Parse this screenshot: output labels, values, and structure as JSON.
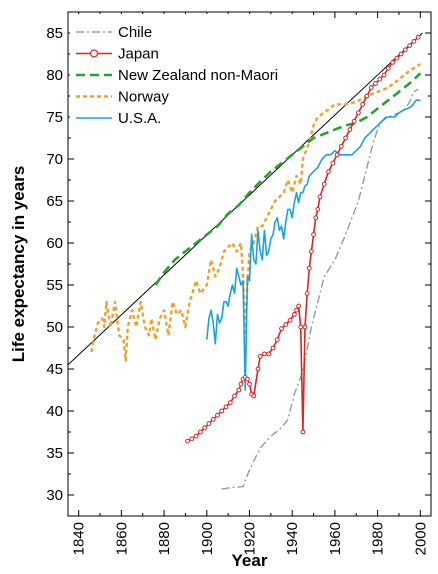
{
  "chart_data": {
    "type": "line",
    "title": "",
    "xlabel": "Year",
    "ylabel": "Life expectancy in years",
    "xlim": [
      1835,
      2005
    ],
    "ylim": [
      27.5,
      87.5
    ],
    "xticks": [
      1840,
      1860,
      1880,
      1900,
      1920,
      1940,
      1960,
      1980,
      2000
    ],
    "yticks": [
      30,
      35,
      40,
      45,
      50,
      55,
      60,
      65,
      70,
      75,
      80,
      85
    ],
    "grid": false,
    "legend_position": "top-left",
    "trend_line": {
      "from": [
        1835,
        45.5
      ],
      "to": [
        2001,
        85
      ],
      "color": "#000000"
    },
    "series": [
      {
        "name": "Chile",
        "color": "#999999",
        "style": "dash-dot",
        "points": [
          [
            1907,
            30.7
          ],
          [
            1912,
            30.9
          ],
          [
            1917,
            31.0
          ],
          [
            1920,
            33
          ],
          [
            1925,
            35.6
          ],
          [
            1930,
            37
          ],
          [
            1935,
            38
          ],
          [
            1938,
            39
          ],
          [
            1941,
            42
          ],
          [
            1944,
            44
          ],
          [
            1946,
            46
          ],
          [
            1949,
            50
          ],
          [
            1951,
            52
          ],
          [
            1953,
            54
          ],
          [
            1955,
            56
          ],
          [
            1960,
            58
          ],
          [
            1965,
            61
          ],
          [
            1968,
            63
          ],
          [
            1971,
            65
          ],
          [
            1973,
            67
          ],
          [
            1976,
            70
          ],
          [
            1978,
            72
          ],
          [
            1980,
            73.5
          ],
          [
            1982,
            74.5
          ],
          [
            1985,
            75
          ],
          [
            1988,
            75.3
          ],
          [
            1990,
            75.5
          ],
          [
            1993,
            76
          ],
          [
            1995,
            76.8
          ],
          [
            1997,
            78
          ],
          [
            1999,
            78.3
          ]
        ]
      },
      {
        "name": "Japan",
        "color": "#d62728",
        "style": "solid",
        "marker": "circle",
        "points": [
          [
            1891,
            36.4
          ],
          [
            1893,
            36.7
          ],
          [
            1895,
            37
          ],
          [
            1897,
            37.5
          ],
          [
            1899,
            38
          ],
          [
            1901,
            38.5
          ],
          [
            1903,
            39
          ],
          [
            1905,
            39.5
          ],
          [
            1907,
            40
          ],
          [
            1909,
            40.5
          ],
          [
            1911,
            41
          ],
          [
            1913,
            41.8
          ],
          [
            1915,
            42.5
          ],
          [
            1916,
            43.2
          ],
          [
            1917,
            43.8
          ],
          [
            1918,
            44
          ],
          [
            1919,
            43.8
          ],
          [
            1920,
            43.2
          ],
          [
            1921,
            42
          ],
          [
            1922,
            41.8
          ],
          [
            1924,
            45
          ],
          [
            1925,
            46.5
          ],
          [
            1927,
            46.8
          ],
          [
            1929,
            46.8
          ],
          [
            1931,
            47.5
          ],
          [
            1933,
            48.5
          ],
          [
            1935,
            49.8
          ],
          [
            1937,
            50.3
          ],
          [
            1939,
            50.8
          ],
          [
            1941,
            51.5
          ],
          [
            1942,
            52
          ],
          [
            1943,
            52.5
          ],
          [
            1944,
            50
          ],
          [
            1945,
            37.5
          ],
          [
            1946,
            50
          ],
          [
            1947,
            54
          ],
          [
            1948,
            57
          ],
          [
            1949,
            59
          ],
          [
            1950,
            61
          ],
          [
            1951,
            63
          ],
          [
            1952,
            64
          ],
          [
            1953,
            65.5
          ],
          [
            1955,
            67
          ],
          [
            1957,
            68.5
          ],
          [
            1959,
            69.5
          ],
          [
            1961,
            70.5
          ],
          [
            1963,
            71.5
          ],
          [
            1965,
            72.5
          ],
          [
            1967,
            73.5
          ],
          [
            1969,
            74.5
          ],
          [
            1971,
            75.5
          ],
          [
            1973,
            76.5
          ],
          [
            1975,
            77.5
          ],
          [
            1977,
            78.5
          ],
          [
            1979,
            79
          ],
          [
            1981,
            79.5
          ],
          [
            1983,
            80
          ],
          [
            1985,
            80.8
          ],
          [
            1987,
            81.5
          ],
          [
            1989,
            82
          ],
          [
            1991,
            82.5
          ],
          [
            1993,
            83
          ],
          [
            1995,
            83.5
          ],
          [
            1997,
            84
          ],
          [
            1999,
            84.5
          ]
        ]
      },
      {
        "name": "New Zealand non-Maori",
        "color": "#2ca02c",
        "style": "dashed",
        "points": [
          [
            1876,
            55
          ],
          [
            1880,
            56.5
          ],
          [
            1885,
            58
          ],
          [
            1890,
            59
          ],
          [
            1895,
            60
          ],
          [
            1900,
            61
          ],
          [
            1905,
            62
          ],
          [
            1910,
            63.5
          ],
          [
            1915,
            64.5
          ],
          [
            1920,
            66
          ],
          [
            1925,
            67.3
          ],
          [
            1930,
            68.5
          ],
          [
            1935,
            69.5
          ],
          [
            1940,
            70.5
          ],
          [
            1945,
            71.5
          ],
          [
            1950,
            72.5
          ],
          [
            1955,
            73
          ],
          [
            1960,
            73.5
          ],
          [
            1965,
            74
          ],
          [
            1970,
            74.3
          ],
          [
            1975,
            75
          ],
          [
            1980,
            76
          ],
          [
            1985,
            77
          ],
          [
            1990,
            78
          ],
          [
            1995,
            79
          ],
          [
            2000,
            80.2
          ]
        ]
      },
      {
        "name": "Norway",
        "color": "#f0a030",
        "style": "dotted",
        "points": [
          [
            1846,
            47
          ],
          [
            1847,
            48.5
          ],
          [
            1849,
            50.5
          ],
          [
            1851,
            51
          ],
          [
            1852,
            50
          ],
          [
            1853,
            53
          ],
          [
            1855,
            50
          ],
          [
            1857,
            53
          ],
          [
            1859,
            49
          ],
          [
            1861,
            48.5
          ],
          [
            1862,
            46
          ],
          [
            1863,
            50
          ],
          [
            1865,
            52
          ],
          [
            1867,
            50
          ],
          [
            1869,
            53
          ],
          [
            1871,
            50
          ],
          [
            1873,
            49
          ],
          [
            1874,
            51
          ],
          [
            1876,
            48.5
          ],
          [
            1878,
            51
          ],
          [
            1880,
            52
          ],
          [
            1882,
            49
          ],
          [
            1884,
            53
          ],
          [
            1886,
            51.5
          ],
          [
            1888,
            52
          ],
          [
            1890,
            50
          ],
          [
            1892,
            53
          ],
          [
            1895,
            55.5
          ],
          [
            1897,
            54
          ],
          [
            1900,
            55
          ],
          [
            1902,
            58
          ],
          [
            1904,
            56
          ],
          [
            1906,
            57
          ],
          [
            1908,
            59
          ],
          [
            1910,
            59.5
          ],
          [
            1912,
            60
          ],
          [
            1914,
            59
          ],
          [
            1916,
            60
          ],
          [
            1917,
            56
          ],
          [
            1918,
            49
          ],
          [
            1919,
            55
          ],
          [
            1920,
            59
          ],
          [
            1922,
            60
          ],
          [
            1924,
            62
          ],
          [
            1926,
            62
          ],
          [
            1928,
            63
          ],
          [
            1930,
            64
          ],
          [
            1932,
            65
          ],
          [
            1934,
            65.5
          ],
          [
            1936,
            66
          ],
          [
            1938,
            67.5
          ],
          [
            1940,
            66
          ],
          [
            1942,
            68
          ],
          [
            1944,
            67
          ],
          [
            1945,
            70
          ],
          [
            1948,
            72
          ],
          [
            1950,
            74
          ],
          [
            1952,
            75
          ],
          [
            1955,
            75.5
          ],
          [
            1960,
            76.5
          ],
          [
            1965,
            76.5
          ],
          [
            1970,
            76.8
          ],
          [
            1975,
            77.5
          ],
          [
            1980,
            78
          ],
          [
            1985,
            78.5
          ],
          [
            1990,
            79.5
          ],
          [
            1995,
            80.5
          ],
          [
            2000,
            81.3
          ]
        ]
      },
      {
        "name": "U.S.A.",
        "color": "#1ba1e2",
        "style": "solid",
        "points": [
          [
            1900,
            48.5
          ],
          [
            1901,
            51
          ],
          [
            1902,
            52
          ],
          [
            1903,
            50.5
          ],
          [
            1904,
            48
          ],
          [
            1905,
            51.5
          ],
          [
            1906,
            50.5
          ],
          [
            1907,
            51
          ],
          [
            1908,
            53
          ],
          [
            1909,
            53
          ],
          [
            1910,
            52.5
          ],
          [
            1911,
            54
          ],
          [
            1912,
            55
          ],
          [
            1913,
            54
          ],
          [
            1914,
            57
          ],
          [
            1915,
            56
          ],
          [
            1916,
            55
          ],
          [
            1917,
            55.5
          ],
          [
            1918,
            42.5
          ],
          [
            1919,
            56
          ],
          [
            1920,
            55.5
          ],
          [
            1921,
            61
          ],
          [
            1922,
            58
          ],
          [
            1923,
            57.5
          ],
          [
            1924,
            61.5
          ],
          [
            1925,
            59
          ],
          [
            1926,
            58
          ],
          [
            1927,
            61.5
          ],
          [
            1928,
            58.5
          ],
          [
            1929,
            59
          ],
          [
            1930,
            60.5
          ],
          [
            1931,
            61
          ],
          [
            1932,
            62.5
          ],
          [
            1933,
            63
          ],
          [
            1934,
            61.5
          ],
          [
            1935,
            62
          ],
          [
            1936,
            60.5
          ],
          [
            1937,
            62.5
          ],
          [
            1938,
            64
          ],
          [
            1939,
            64
          ],
          [
            1940,
            63
          ],
          [
            1941,
            64.8
          ],
          [
            1942,
            66
          ],
          [
            1943,
            64.8
          ],
          [
            1944,
            66
          ],
          [
            1945,
            66
          ],
          [
            1946,
            66.8
          ],
          [
            1947,
            67
          ],
          [
            1948,
            68
          ],
          [
            1950,
            68.5
          ],
          [
            1952,
            69
          ],
          [
            1954,
            70
          ],
          [
            1956,
            70.5
          ],
          [
            1958,
            70.5
          ],
          [
            1960,
            71
          ],
          [
            1962,
            70.5
          ],
          [
            1964,
            70.5
          ],
          [
            1966,
            70.5
          ],
          [
            1968,
            70.5
          ],
          [
            1970,
            71
          ],
          [
            1972,
            71.5
          ],
          [
            1974,
            72.5
          ],
          [
            1976,
            73
          ],
          [
            1978,
            73.5
          ],
          [
            1980,
            74
          ],
          [
            1982,
            74.5
          ],
          [
            1984,
            75
          ],
          [
            1986,
            75
          ],
          [
            1988,
            75
          ],
          [
            1990,
            75.5
          ],
          [
            1992,
            75.8
          ],
          [
            1994,
            76
          ],
          [
            1996,
            76.3
          ],
          [
            1998,
            77
          ],
          [
            2000,
            77
          ]
        ]
      }
    ]
  }
}
